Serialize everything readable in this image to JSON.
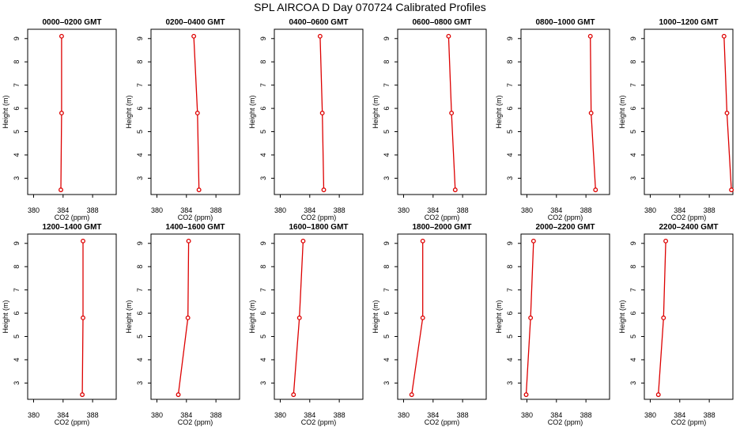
{
  "title": "SPL AIRCOA D  Day 070724  Calibrated Profiles",
  "colors": {
    "series": "#dd0000",
    "axis": "#000000"
  },
  "chart_data": [
    {
      "type": "line",
      "title": "0000–0200 GMT",
      "xlabel": "CO2 (ppm)",
      "ylabel": "Height (m)",
      "xlim": [
        379.2,
        391.2
      ],
      "ylim": [
        2.3,
        9.4
      ],
      "xticks": [
        380,
        384,
        388
      ],
      "yticks": [
        3,
        4,
        5,
        6,
        7,
        8,
        9
      ],
      "x": [
        383.7,
        383.8,
        383.8
      ],
      "y": [
        2.5,
        5.8,
        9.1
      ]
    },
    {
      "type": "line",
      "title": "0200–0400 GMT",
      "xlabel": "CO2 (ppm)",
      "ylabel": "Height (m)",
      "xlim": [
        379.2,
        391.2
      ],
      "ylim": [
        2.3,
        9.4
      ],
      "xticks": [
        380,
        384,
        388
      ],
      "yticks": [
        3,
        4,
        5,
        6,
        7,
        8,
        9
      ],
      "x": [
        385.7,
        385.5,
        385.0
      ],
      "y": [
        2.5,
        5.8,
        9.1
      ]
    },
    {
      "type": "line",
      "title": "0400–0600 GMT",
      "xlabel": "CO2 (ppm)",
      "ylabel": "Height (m)",
      "xlim": [
        379.2,
        391.2
      ],
      "ylim": [
        2.3,
        9.4
      ],
      "xticks": [
        380,
        384,
        388
      ],
      "yticks": [
        3,
        4,
        5,
        6,
        7,
        8,
        9
      ],
      "x": [
        385.9,
        385.7,
        385.4
      ],
      "y": [
        2.5,
        5.8,
        9.1
      ]
    },
    {
      "type": "line",
      "title": "0600–0800 GMT",
      "xlabel": "CO2 (ppm)",
      "ylabel": "Height (m)",
      "xlim": [
        379.2,
        391.2
      ],
      "ylim": [
        2.3,
        9.4
      ],
      "xticks": [
        380,
        384,
        388
      ],
      "yticks": [
        3,
        4,
        5,
        6,
        7,
        8,
        9
      ],
      "x": [
        387.0,
        386.5,
        386.1
      ],
      "y": [
        2.5,
        5.8,
        9.1
      ]
    },
    {
      "type": "line",
      "title": "0800–1000 GMT",
      "xlabel": "CO2 (ppm)",
      "ylabel": "Height (m)",
      "xlim": [
        379.2,
        391.2
      ],
      "ylim": [
        2.3,
        9.4
      ],
      "xticks": [
        380,
        384,
        388
      ],
      "yticks": [
        3,
        4,
        5,
        6,
        7,
        8,
        9
      ],
      "x": [
        389.3,
        388.7,
        388.6
      ],
      "y": [
        2.5,
        5.8,
        9.1
      ]
    },
    {
      "type": "line",
      "title": "1000–1200 GMT",
      "xlabel": "CO2 (ppm)",
      "ylabel": "Height (m)",
      "xlim": [
        379.2,
        391.2
      ],
      "ylim": [
        2.3,
        9.4
      ],
      "xticks": [
        380,
        384,
        388
      ],
      "yticks": [
        3,
        4,
        5,
        6,
        7,
        8,
        9
      ],
      "x": [
        391.0,
        390.4,
        390.0
      ],
      "y": [
        2.5,
        5.8,
        9.1
      ]
    },
    {
      "type": "line",
      "title": "1200–1400 GMT",
      "xlabel": "CO2 (ppm)",
      "ylabel": "Height (m)",
      "xlim": [
        379.2,
        391.2
      ],
      "ylim": [
        2.3,
        9.4
      ],
      "xticks": [
        380,
        384,
        388
      ],
      "yticks": [
        3,
        4,
        5,
        6,
        7,
        8,
        9
      ],
      "x": [
        386.6,
        386.7,
        386.7
      ],
      "y": [
        2.5,
        5.8,
        9.1
      ]
    },
    {
      "type": "line",
      "title": "1400–1600 GMT",
      "xlabel": "CO2 (ppm)",
      "ylabel": "Height (m)",
      "xlim": [
        379.2,
        391.2
      ],
      "ylim": [
        2.3,
        9.4
      ],
      "xticks": [
        380,
        384,
        388
      ],
      "yticks": [
        3,
        4,
        5,
        6,
        7,
        8,
        9
      ],
      "x": [
        382.9,
        384.2,
        384.3
      ],
      "y": [
        2.5,
        5.8,
        9.1
      ]
    },
    {
      "type": "line",
      "title": "1600–1800 GMT",
      "xlabel": "CO2 (ppm)",
      "ylabel": "Height (m)",
      "xlim": [
        379.2,
        391.2
      ],
      "ylim": [
        2.3,
        9.4
      ],
      "xticks": [
        380,
        384,
        388
      ],
      "yticks": [
        3,
        4,
        5,
        6,
        7,
        8,
        9
      ],
      "x": [
        381.8,
        382.6,
        383.1
      ],
      "y": [
        2.5,
        5.8,
        9.1
      ]
    },
    {
      "type": "line",
      "title": "1800–2000 GMT",
      "xlabel": "CO2 (ppm)",
      "ylabel": "Height (m)",
      "xlim": [
        379.2,
        391.2
      ],
      "ylim": [
        2.3,
        9.4
      ],
      "xticks": [
        380,
        384,
        388
      ],
      "yticks": [
        3,
        4,
        5,
        6,
        7,
        8,
        9
      ],
      "x": [
        381.1,
        382.6,
        382.6
      ],
      "y": [
        2.5,
        5.8,
        9.1
      ]
    },
    {
      "type": "line",
      "title": "2000–2200 GMT",
      "xlabel": "CO2 (ppm)",
      "ylabel": "Height (m)",
      "xlim": [
        379.2,
        391.2
      ],
      "ylim": [
        2.3,
        9.4
      ],
      "xticks": [
        380,
        384,
        388
      ],
      "yticks": [
        3,
        4,
        5,
        6,
        7,
        8,
        9
      ],
      "x": [
        379.9,
        380.5,
        380.9
      ],
      "y": [
        2.5,
        5.8,
        9.1
      ]
    },
    {
      "type": "line",
      "title": "2200–2400 GMT",
      "xlabel": "CO2 (ppm)",
      "ylabel": "Height (m)",
      "xlim": [
        379.2,
        391.2
      ],
      "ylim": [
        2.3,
        9.4
      ],
      "xticks": [
        380,
        384,
        388
      ],
      "yticks": [
        3,
        4,
        5,
        6,
        7,
        8,
        9
      ],
      "x": [
        381.1,
        381.8,
        382.1
      ],
      "y": [
        2.5,
        5.8,
        9.1
      ]
    }
  ]
}
